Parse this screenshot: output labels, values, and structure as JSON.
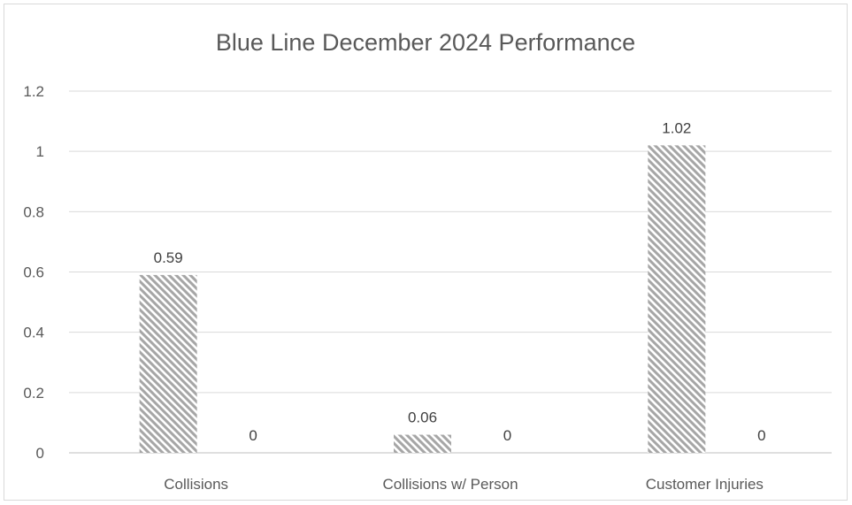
{
  "chart_data": {
    "type": "bar",
    "title": "Blue Line December 2024 Performance",
    "categories": [
      "Collisions",
      "Collisions w/ Person",
      "Customer Injuries"
    ],
    "series": [
      {
        "values": [
          0.59,
          0.06,
          1.02
        ],
        "labels": [
          "0.59",
          "0.06",
          "1.02"
        ],
        "pattern": "diagonal-hatch",
        "color": "#a6a6a6"
      },
      {
        "values": [
          0,
          0,
          0
        ],
        "labels": [
          "0",
          "0",
          "0"
        ],
        "color": "#a6a6a6"
      }
    ],
    "ylim": [
      0,
      1.2
    ],
    "yticks": [
      "0",
      "0.2",
      "0.4",
      "0.6",
      "0.8",
      "1",
      "1.2"
    ],
    "grid": true,
    "legend": "none"
  }
}
